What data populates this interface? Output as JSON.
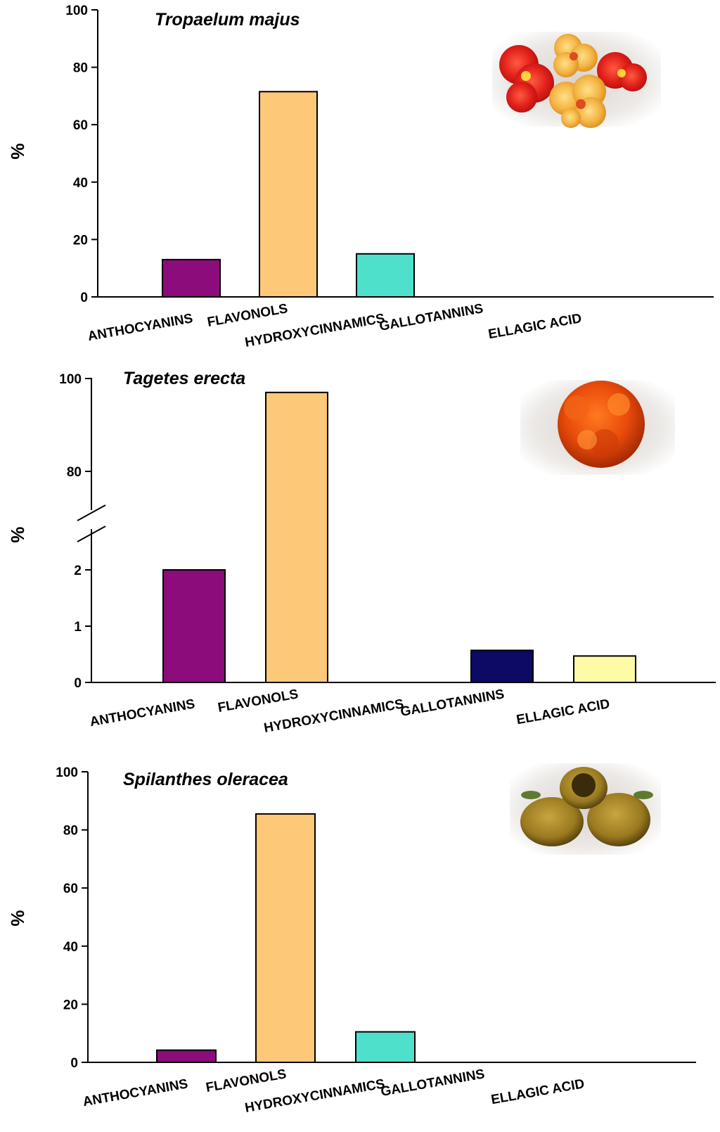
{
  "chart_data": [
    {
      "type": "bar",
      "title": "Tropaelum majus",
      "ylabel": "%",
      "xlabel": "",
      "ylim": [
        0,
        100
      ],
      "yticks": [
        "0",
        "20",
        "40",
        "60",
        "80",
        "100"
      ],
      "categories": [
        "ANTHOCYANINS",
        "FLAVONOLS",
        "HYDROXYCINNAMICS",
        "GALLOTANNINS",
        "ELLAGIC ACID"
      ],
      "values": [
        13,
        71.5,
        15,
        0,
        0
      ],
      "colors": [
        "#8b0c7a",
        "#fdc878",
        "#4fe0cc",
        "#0c0a64",
        "#fdfba6"
      ],
      "image": "nasturtium-flowers-photo"
    },
    {
      "type": "bar",
      "title": "Tagetes erecta",
      "ylabel": "%",
      "xlabel": "",
      "axis_break": true,
      "ylim_lower": [
        0,
        2.5
      ],
      "ylim_upper": [
        70,
        100
      ],
      "yticks_lower": [
        "0",
        "1",
        "2"
      ],
      "yticks_upper": [
        "80",
        "100"
      ],
      "categories": [
        "ANTHOCYANINS",
        "FLAVONOLS",
        "HYDROXYCINNAMICS",
        "GALLOTANNINS",
        "ELLAGIC ACID"
      ],
      "values": [
        2.0,
        97,
        0,
        0.57,
        0.47
      ],
      "colors": [
        "#8b0c7a",
        "#fdc878",
        "#4fe0cc",
        "#0c0a64",
        "#fdfba6"
      ],
      "image": "marigold-flower-photo"
    },
    {
      "type": "bar",
      "title": "Spilanthes oleracea",
      "ylabel": "%",
      "xlabel": "",
      "ylim": [
        0,
        100
      ],
      "yticks": [
        "0",
        "20",
        "40",
        "60",
        "80",
        "100"
      ],
      "categories": [
        "ANTHOCYANINS",
        "FLAVONOLS",
        "HYDROXYCINNAMICS",
        "GALLOTANNINS",
        "ELLAGIC ACID"
      ],
      "values": [
        4.2,
        85.5,
        10.5,
        0,
        0
      ],
      "colors": [
        "#8b0c7a",
        "#fdc878",
        "#4fe0cc",
        "#0c0a64",
        "#fdfba6"
      ],
      "image": "spilanthes-flower-heads-photo"
    }
  ]
}
